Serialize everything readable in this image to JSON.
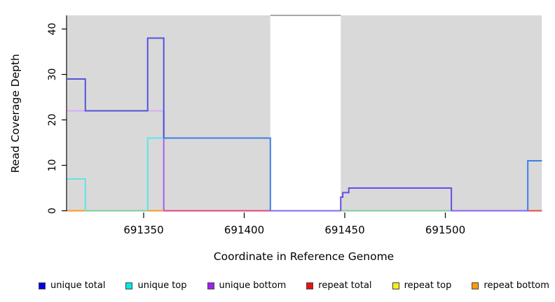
{
  "chart_data": {
    "type": "line",
    "subtype": "step-coverage-plot",
    "title": "",
    "xlabel": "Coordinate in Reference Genome",
    "ylabel": "Read Coverage Depth",
    "xlim": [
      691312,
      691548
    ],
    "ylim": [
      0,
      43
    ],
    "grid": "off",
    "legend_position": "bottom",
    "xticks": [
      {
        "value": 691350,
        "label": "691350"
      },
      {
        "value": 691400,
        "label": "691400"
      },
      {
        "value": 691450,
        "label": "691450"
      },
      {
        "value": 691500,
        "label": "691500"
      }
    ],
    "yticks": [
      {
        "value": 0,
        "label": "0"
      },
      {
        "value": 10,
        "label": "10"
      },
      {
        "value": 20,
        "label": "20"
      },
      {
        "value": 30,
        "label": "30"
      },
      {
        "value": 40,
        "label": "40"
      }
    ],
    "plot_background_regions": [
      {
        "name": "covered-region-left",
        "x0": 691312,
        "x1": 691413,
        "fill": "#d9d9d9"
      },
      {
        "name": "uncovered-gap",
        "x0": 691413,
        "x1": 691448,
        "fill": "#ffffff"
      },
      {
        "name": "covered-region-right",
        "x0": 691448,
        "x1": 691548,
        "fill": "#d9d9d9"
      }
    ],
    "gap_top_line": {
      "x0": 691413,
      "x1": 691448,
      "y": 43,
      "color": "#8c8c8c"
    },
    "series": [
      {
        "name": "unique total",
        "color": "#0000f0",
        "segments": [
          [
            691312,
            691321,
            29
          ],
          [
            691321,
            691352,
            22
          ],
          [
            691352,
            691360,
            38
          ],
          [
            691360,
            691413,
            16
          ],
          [
            691413,
            691448,
            0
          ],
          [
            691541,
            691548,
            11
          ]
        ]
      },
      {
        "name": "unique top",
        "color": "#00e8e8",
        "segments": [
          [
            691312,
            691321,
            7
          ],
          [
            691321,
            691352,
            0
          ],
          [
            691352,
            691413,
            16
          ],
          [
            691413,
            691548,
            0
          ]
        ]
      },
      {
        "name": "unique bottom",
        "color": "#a020f0",
        "segments": [
          [
            691312,
            691360,
            22
          ],
          [
            691360,
            691413,
            0
          ],
          [
            691448,
            691449,
            3
          ],
          [
            691449,
            691452,
            4
          ],
          [
            691452,
            691503,
            5
          ],
          [
            691503,
            691541,
            0
          ]
        ]
      },
      {
        "name": "repeat total",
        "color": "#ee1111",
        "segments": [
          [
            691312,
            691548,
            0
          ]
        ]
      },
      {
        "name": "repeat top",
        "color": "#f2f20a",
        "segments": [
          [
            691312,
            691548,
            0
          ]
        ]
      },
      {
        "name": "repeat bottom",
        "color": "#ff9d0a",
        "segments": [
          [
            691312,
            691360,
            0
          ]
        ]
      }
    ],
    "draw_lines": [
      {
        "name": "repeat-bottom-baseline-a",
        "color": "#ff9a1e",
        "points": [
          [
            691312,
            0
          ],
          [
            691321,
            0
          ]
        ]
      },
      {
        "name": "baseline-green-a",
        "color": "#7ecf9e",
        "points": [
          [
            691321,
            0
          ],
          [
            691352,
            0
          ]
        ]
      },
      {
        "name": "repeat-bottom-baseline-b",
        "color": "#ff9a1e",
        "points": [
          [
            691352,
            0
          ],
          [
            691360,
            0
          ]
        ]
      },
      {
        "name": "repeat-total-baseline-a",
        "color": "#e0457a",
        "points": [
          [
            691360,
            0
          ],
          [
            691413,
            0
          ]
        ]
      },
      {
        "name": "gap-baseline",
        "color": "#7d6cee",
        "points": [
          [
            691413,
            0
          ],
          [
            691448,
            0
          ]
        ]
      },
      {
        "name": "baseline-green-b",
        "color": "#7ecf9e",
        "points": [
          [
            691448,
            0
          ],
          [
            691503,
            0
          ]
        ]
      },
      {
        "name": "unique-bottom-baseline",
        "color": "#8a63f0",
        "points": [
          [
            691503,
            0
          ],
          [
            691541,
            0
          ]
        ]
      },
      {
        "name": "repeat-total-baseline-b",
        "color": "#ea4848",
        "points": [
          [
            691541,
            0
          ],
          [
            691548,
            0
          ]
        ]
      },
      {
        "name": "unique-bottom-22",
        "color": "#d9a9f2",
        "points": [
          [
            691312,
            22
          ],
          [
            691360,
            22
          ]
        ]
      },
      {
        "name": "unique-bottom-drop",
        "color": "#a85df0",
        "points": [
          [
            691360,
            22
          ],
          [
            691360,
            0
          ]
        ]
      },
      {
        "name": "unique-top-7",
        "color": "#5ce6e6",
        "points": [
          [
            691312,
            7
          ],
          [
            691321,
            7
          ],
          [
            691321,
            0
          ]
        ]
      },
      {
        "name": "unique-top-16",
        "color": "#5ce6e6",
        "points": [
          [
            691352,
            0
          ],
          [
            691352,
            16
          ],
          [
            691413,
            16
          ]
        ]
      },
      {
        "name": "unique-total-left",
        "color": "#5352dd",
        "points": [
          [
            691312,
            29
          ],
          [
            691321,
            29
          ],
          [
            691321,
            22
          ],
          [
            691352,
            22
          ],
          [
            691352,
            38
          ],
          [
            691360,
            38
          ],
          [
            691360,
            16
          ]
        ]
      },
      {
        "name": "unique-total-16",
        "color": "#3d7fe8",
        "points": [
          [
            691360,
            16
          ],
          [
            691413,
            16
          ],
          [
            691413,
            0
          ]
        ]
      },
      {
        "name": "unique-bottom-steps",
        "color": "#6a4ae8",
        "points": [
          [
            691448,
            0
          ],
          [
            691448,
            3
          ],
          [
            691449,
            3
          ],
          [
            691449,
            4
          ],
          [
            691452,
            4
          ],
          [
            691452,
            5
          ],
          [
            691503,
            5
          ],
          [
            691503,
            0
          ]
        ]
      },
      {
        "name": "unique-total-11",
        "color": "#3d7fe8",
        "points": [
          [
            691541,
            0
          ],
          [
            691541,
            11
          ],
          [
            691548,
            11
          ]
        ]
      }
    ]
  },
  "legend": {
    "items": [
      {
        "label": "unique total",
        "color": "#0000f0"
      },
      {
        "label": "unique top",
        "color": "#00e8e8"
      },
      {
        "label": "unique bottom",
        "color": "#a020f0"
      },
      {
        "label": "repeat total",
        "color": "#ee1111"
      },
      {
        "label": "repeat top",
        "color": "#f2f20a"
      },
      {
        "label": "repeat bottom",
        "color": "#ff9d0a"
      }
    ]
  }
}
